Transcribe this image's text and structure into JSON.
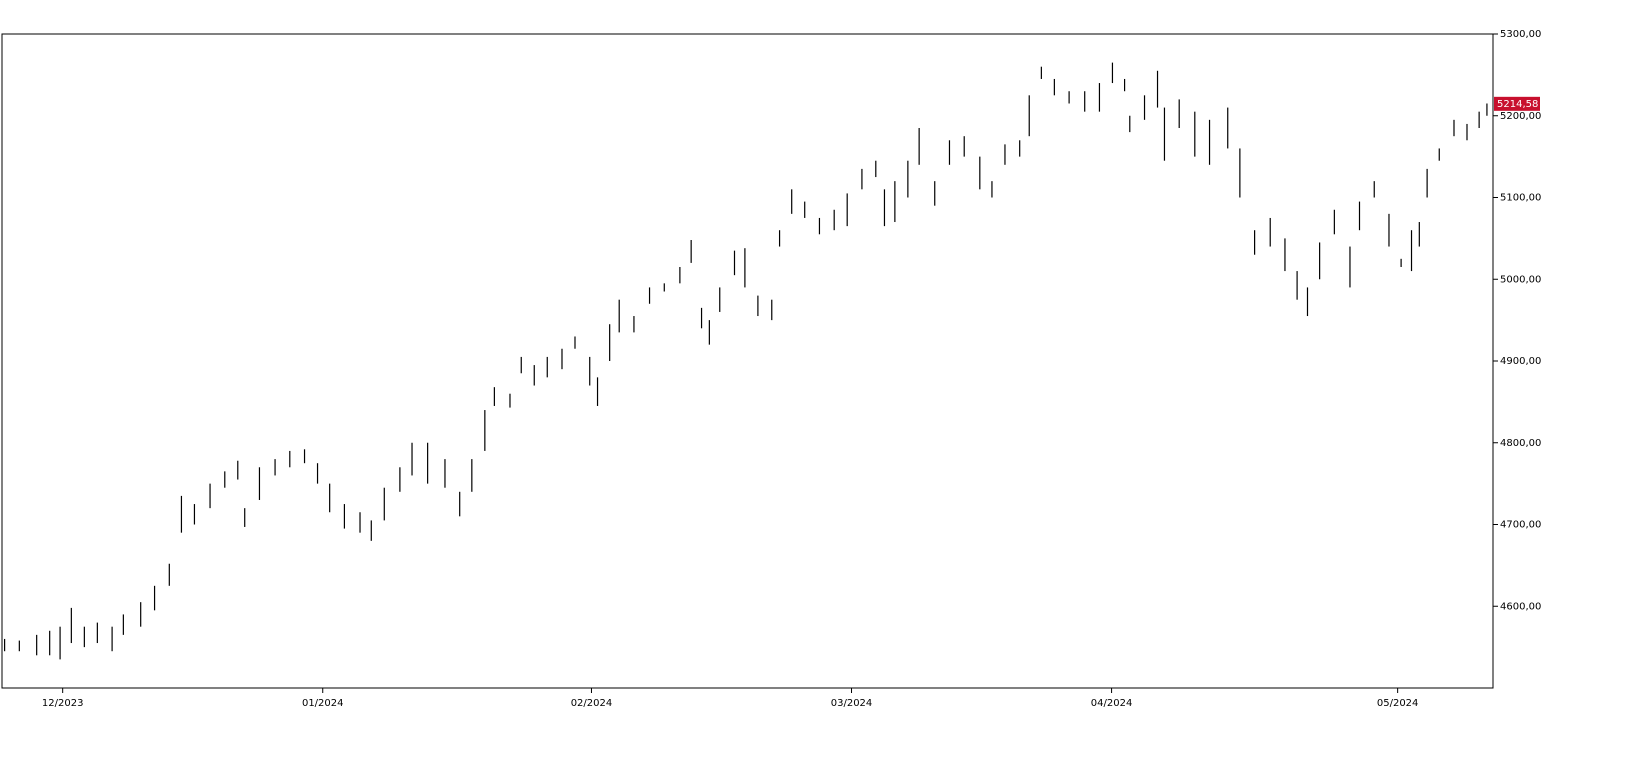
{
  "chart_data": {
    "type": "range",
    "color": "#000000",
    "x": [
      -6.7,
      -5,
      -3,
      -1.5,
      -0.3,
      1,
      2.5,
      4,
      5.7,
      7,
      9,
      10.6,
      12.3,
      13.7,
      15.2,
      17,
      18.7,
      20.2,
      21,
      22.7,
      24.5,
      26.2,
      27.9,
      29.4,
      30.8,
      32.5,
      34.3,
      35.6,
      37.1,
      38.9,
      40.3,
      42.1,
      44.1,
      45.8,
      47.2,
      48.7,
      49.8,
      51.6,
      52.9,
      54.4,
      55.9,
      57.6,
      59.1,
      60.8,
      61.7,
      63.1,
      64.2,
      65.9,
      67.7,
      69.4,
      71.2,
      72.5,
      73.7,
      74.6,
      75.8,
      77.5,
      78.7,
      80.2,
      81.8,
      82.7,
      84.1,
      85.6,
      87.3,
      89,
      90.5,
      92.2,
      93.8,
      94.8,
      96,
      97.5,
      98.8,
      100.6,
      102.3,
      104,
      105.8,
      107.2,
      108.7,
      110.4,
      111.5,
      112.9,
      114.4,
      116.1,
      117.9,
      119.6,
      121.1,
      122.5,
      123.1,
      124.8,
      126.3,
      127.1,
      128.8,
      130.6,
      132.3,
      134.4,
      135.8,
      137.5,
      139.3,
      141,
      142.4,
      143.6,
      145,
      146.7,
      148.5,
      149.6,
      151.3,
      153,
      154.4,
      155.6,
      156.5,
      157.4,
      158.8,
      160.5,
      162,
      163.4,
      164.3
    ],
    "high": [
      4560,
      4558,
      4565,
      4570,
      4575,
      4598,
      4575,
      4580,
      4575,
      4590,
      4605,
      4625,
      4652,
      4735,
      4725,
      4750,
      4765,
      4778,
      4720,
      4770,
      4780,
      4790,
      4792,
      4775,
      4750,
      4725,
      4715,
      4705,
      4745,
      4770,
      4800,
      4800,
      4780,
      4740,
      4780,
      4840,
      4868,
      4860,
      4905,
      4895,
      4905,
      4915,
      4930,
      4905,
      4880,
      4945,
      4975,
      4955,
      4990,
      4995,
      5015,
      5048,
      4965,
      4950,
      4990,
      5035,
      5038,
      4980,
      4975,
      5060,
      5110,
      5095,
      5075,
      5085,
      5105,
      5135,
      5145,
      5110,
      5120,
      5145,
      5185,
      5120,
      5170,
      5175,
      5150,
      5120,
      5165,
      5170,
      5225,
      5260,
      5245,
      5230,
      5230,
      5240,
      5265,
      5245,
      5200,
      5225,
      5255,
      5210,
      5220,
      5205,
      5195,
      5210,
      5160,
      5060,
      5075,
      5050,
      5010,
      4990,
      5045,
      5085,
      5040,
      5095,
      5120,
      5080,
      5025,
      5060,
      5070,
      5135,
      5160,
      5195,
      5190,
      5205,
      5215
    ],
    "low": [
      4545,
      4545,
      4540,
      4540,
      4535,
      4555,
      4550,
      4555,
      4545,
      4565,
      4575,
      4595,
      4625,
      4690,
      4700,
      4720,
      4745,
      4755,
      4697,
      4730,
      4760,
      4770,
      4775,
      4750,
      4715,
      4695,
      4690,
      4680,
      4705,
      4740,
      4760,
      4750,
      4745,
      4710,
      4740,
      4790,
      4845,
      4843,
      4885,
      4870,
      4880,
      4890,
      4915,
      4870,
      4845,
      4900,
      4935,
      4935,
      4970,
      4985,
      4995,
      5020,
      4940,
      4920,
      4960,
      5005,
      4990,
      4955,
      4950,
      5040,
      5080,
      5075,
      5055,
      5060,
      5065,
      5110,
      5125,
      5065,
      5070,
      5100,
      5140,
      5090,
      5140,
      5150,
      5110,
      5100,
      5140,
      5150,
      5175,
      5245,
      5225,
      5215,
      5205,
      5205,
      5240,
      5230,
      5180,
      5195,
      5210,
      5145,
      5185,
      5150,
      5140,
      5160,
      5100,
      5030,
      5040,
      5010,
      4975,
      4955,
      5000,
      5055,
      4990,
      5060,
      5100,
      5040,
      5015,
      5010,
      5040,
      5100,
      5145,
      5175,
      5170,
      5185,
      5200
    ],
    "xlim": [
      -7,
      165
    ],
    "ylim": [
      4500,
      5300
    ],
    "xticks": [
      {
        "value": 0,
        "label": "12/2023"
      },
      {
        "value": 30,
        "label": "01/2024"
      },
      {
        "value": 61,
        "label": "02/2024"
      },
      {
        "value": 91,
        "label": "03/2024"
      },
      {
        "value": 121,
        "label": "04/2024"
      },
      {
        "value": 154,
        "label": "05/2024"
      }
    ],
    "yticks": [
      {
        "value": 4600,
        "label": "4600,00"
      },
      {
        "value": 4700,
        "label": "4700,00"
      },
      {
        "value": 4800,
        "label": "4800,00"
      },
      {
        "value": 4900,
        "label": "4900,00"
      },
      {
        "value": 5000,
        "label": "5000,00"
      },
      {
        "value": 5100,
        "label": "5100,00"
      },
      {
        "value": 5200,
        "label": "5200,00"
      },
      {
        "value": 5300,
        "label": "5300,00"
      }
    ],
    "last_price": {
      "value": 5214.58,
      "label": "5214,58",
      "color": "#c8102e"
    }
  }
}
